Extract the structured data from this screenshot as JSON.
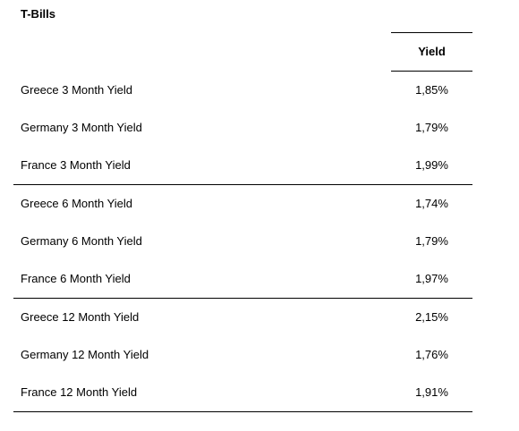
{
  "title": "T-Bills",
  "column_header": "Yield",
  "rows": [
    {
      "label": "Greece 3 Month Yield",
      "value": "1,85%"
    },
    {
      "label": "Germany 3 Month Yield",
      "value": "1,79%"
    },
    {
      "label": "France 3 Month Yield",
      "value": "1,99%"
    },
    {
      "label": "Greece 6 Month Yield",
      "value": "1,74%"
    },
    {
      "label": "Germany 6 Month Yield",
      "value": "1,79%"
    },
    {
      "label": "France 6 Month Yield",
      "value": "1,97%"
    },
    {
      "label": "Greece 12 Month Yield",
      "value": "2,15%"
    },
    {
      "label": "Germany 12 Month Yield",
      "value": "1,76%"
    },
    {
      "label": "France 12 Month Yield",
      "value": "1,91%"
    }
  ]
}
